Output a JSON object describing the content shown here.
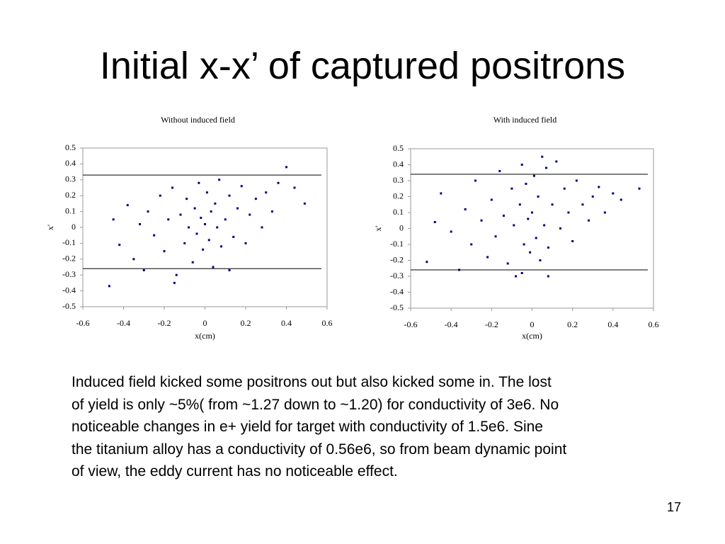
{
  "title": "Initial x-x’ of captured positrons",
  "body": [
    "Induced field kicked some positrons out but also kicked some in.  The lost",
    "of yield is only ~5%( from ~1.27 down to ~1.20)  for conductivity of 3e6.  No",
    "noticeable changes in e+ yield for target with conductivity of 1.5e6.  Sine",
    "the titanium alloy has a conductivity of 0.56e6, so from beam dynamic point",
    "of view, the eddy current has no noticeable effect."
  ],
  "page_number": "17",
  "chart_data": [
    {
      "type": "scatter",
      "title": "Without induced field",
      "x_label": "x(cm)",
      "y_label": "x'",
      "xlim": [
        -0.6,
        0.6
      ],
      "ylim": [
        -0.5,
        0.5
      ],
      "xticks": [
        -0.6,
        -0.4,
        -0.2,
        0,
        0.2,
        0.4,
        0.6
      ],
      "yticks": [
        -0.5,
        -0.4,
        -0.3,
        -0.2,
        -0.1,
        0,
        0.1,
        0.2,
        0.3,
        0.4,
        0.5
      ],
      "reference_lines": [
        0.33,
        -0.26
      ],
      "color": "#000080",
      "x": [
        -0.47,
        -0.45,
        -0.42,
        -0.38,
        -0.35,
        -0.32,
        -0.3,
        -0.28,
        -0.25,
        -0.22,
        -0.2,
        -0.18,
        -0.16,
        -0.14,
        -0.12,
        -0.1,
        -0.09,
        -0.08,
        -0.06,
        -0.05,
        -0.04,
        -0.03,
        -0.02,
        -0.01,
        0,
        0.01,
        0.02,
        0.03,
        0.04,
        0.05,
        0.06,
        0.07,
        0.08,
        0.1,
        0.12,
        0.14,
        0.16,
        0.18,
        0.2,
        0.22,
        0.25,
        0.28,
        0.3,
        0.33,
        0.36,
        0.4,
        0.44,
        0.49,
        -0.15,
        0.12
      ],
      "values": [
        -0.37,
        0.05,
        -0.11,
        0.14,
        -0.2,
        0.02,
        -0.27,
        0.1,
        -0.05,
        0.2,
        -0.15,
        0.05,
        0.25,
        -0.3,
        0.08,
        -0.1,
        0.18,
        0,
        -0.22,
        0.12,
        -0.04,
        0.28,
        0.06,
        -0.14,
        0.02,
        0.22,
        -0.08,
        0.1,
        -0.25,
        0.15,
        0,
        0.3,
        -0.12,
        0.05,
        0.2,
        -0.06,
        0.12,
        0.26,
        -0.1,
        0.08,
        0.18,
        0,
        0.22,
        0.1,
        0.28,
        0.38,
        0.25,
        0.15,
        -0.35,
        -0.27
      ]
    },
    {
      "type": "scatter",
      "title": "With induced field",
      "x_label": "x(cm)",
      "y_label": "x'",
      "xlim": [
        -0.6,
        0.6
      ],
      "ylim": [
        -0.5,
        0.5
      ],
      "xticks": [
        -0.6,
        -0.4,
        -0.2,
        0,
        0.2,
        0.4,
        0.6
      ],
      "yticks": [
        -0.5,
        -0.4,
        -0.3,
        -0.2,
        -0.1,
        0,
        0.1,
        0.2,
        0.3,
        0.4,
        0.5
      ],
      "reference_lines": [
        0.34,
        -0.26
      ],
      "color": "#000080",
      "x": [
        -0.52,
        -0.48,
        -0.45,
        -0.4,
        -0.36,
        -0.33,
        -0.3,
        -0.28,
        -0.25,
        -0.22,
        -0.2,
        -0.18,
        -0.16,
        -0.14,
        -0.12,
        -0.1,
        -0.09,
        -0.08,
        -0.06,
        -0.05,
        -0.04,
        -0.03,
        -0.02,
        -0.01,
        0,
        0.01,
        0.02,
        0.03,
        0.04,
        0.05,
        0.06,
        0.07,
        0.08,
        0.1,
        0.12,
        0.14,
        0.16,
        0.18,
        0.2,
        0.22,
        0.25,
        0.28,
        0.3,
        0.33,
        0.36,
        0.4,
        0.44,
        0.53,
        -0.05,
        0.08
      ],
      "values": [
        -0.21,
        0.04,
        0.22,
        -0.02,
        -0.26,
        0.12,
        -0.1,
        0.3,
        0.05,
        -0.18,
        0.18,
        -0.05,
        0.36,
        0.08,
        -0.22,
        0.25,
        0.02,
        -0.3,
        0.15,
        0.4,
        -0.1,
        0.28,
        0.06,
        -0.15,
        0.1,
        0.33,
        -0.06,
        0.2,
        -0.2,
        0.45,
        0.02,
        0.38,
        -0.12,
        0.15,
        0.42,
        0,
        0.25,
        0.1,
        -0.08,
        0.3,
        0.15,
        0.05,
        0.2,
        0.26,
        0.1,
        0.22,
        0.18,
        0.25,
        -0.28,
        -0.3
      ]
    }
  ]
}
